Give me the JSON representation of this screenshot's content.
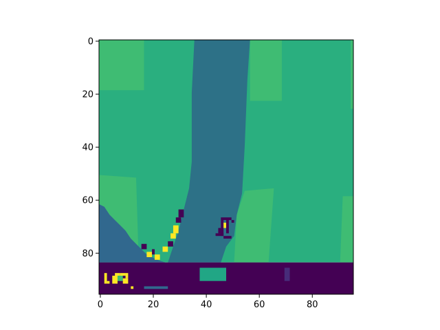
{
  "figure": {
    "image_grid": {
      "width": 96,
      "height": 96
    },
    "colormap": "viridis",
    "colors": {
      "dark_purple": "#440154",
      "violet": "#472c7a",
      "river_blue": "#2d7187",
      "deep_blue": "#31688e",
      "teal": "#21a685",
      "green": "#2aaf7f",
      "light_green": "#3fbc73",
      "yellow": "#fde725"
    },
    "x_axis": {
      "ticks": [
        0,
        20,
        40,
        60,
        80
      ],
      "labels": [
        "0",
        "20",
        "40",
        "60",
        "80"
      ]
    },
    "y_axis": {
      "ticks": [
        0,
        20,
        40,
        60,
        80
      ],
      "labels": [
        "0",
        "20",
        "40",
        "60",
        "80"
      ]
    }
  }
}
